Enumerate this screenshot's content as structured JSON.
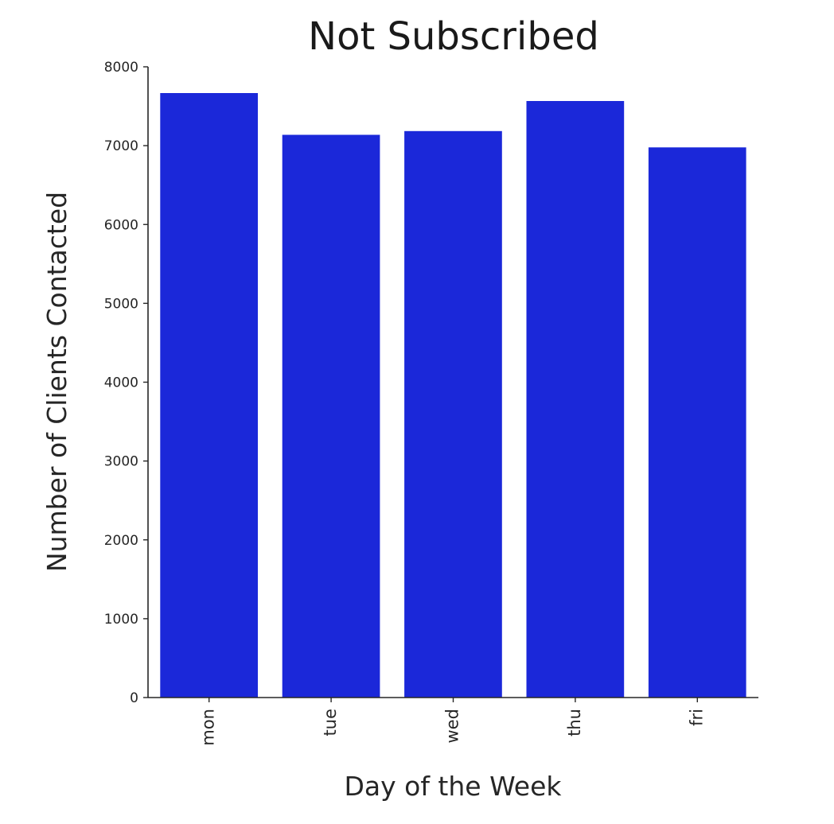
{
  "chart_data": {
    "type": "bar",
    "title": "Not Subscribed",
    "xlabel": "Day of the Week",
    "ylabel": "Number of Clients Contacted",
    "categories": [
      "mon",
      "tue",
      "wed",
      "thu",
      "fri"
    ],
    "values": [
      7667,
      7137,
      7185,
      7566,
      6978
    ],
    "ylim": [
      0,
      8000
    ],
    "yticks": [
      "0",
      "1000",
      "2000",
      "3000",
      "4000",
      "5000",
      "6000",
      "7000",
      "8000"
    ],
    "bar_color": "#1b28d9",
    "grid": false,
    "legend": "none"
  }
}
